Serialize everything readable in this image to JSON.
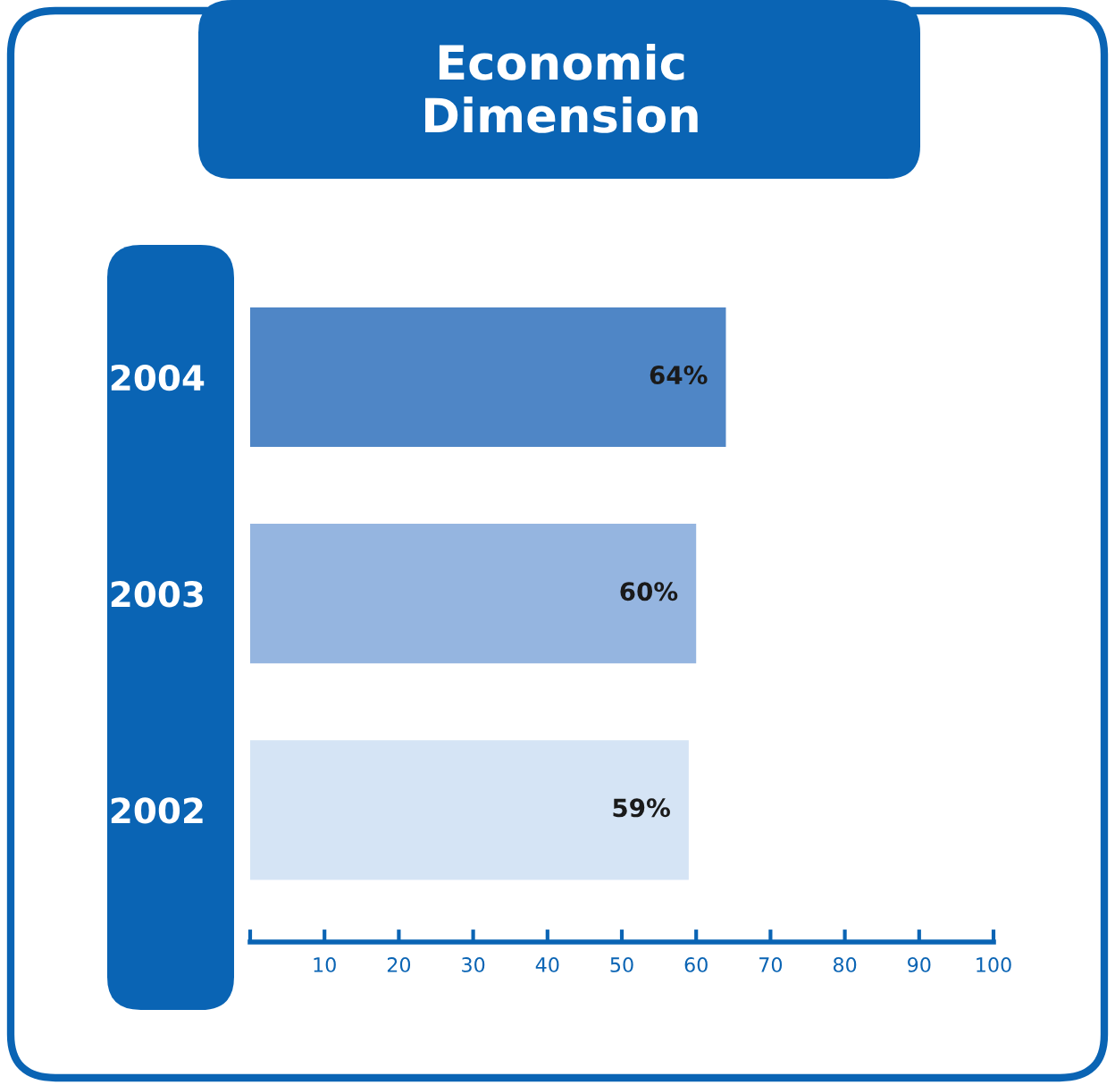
{
  "chart_data": {
    "type": "bar",
    "orientation": "horizontal",
    "title": "Economic\nDimension",
    "categories": [
      "2004",
      "2003",
      "2002"
    ],
    "values": [
      64,
      60,
      59
    ],
    "colors": [
      "#4f86c6",
      "#95b5e0",
      "#d5e4f5"
    ],
    "value_labels": [
      "64%",
      "60%",
      "59%"
    ],
    "xlim": [
      0,
      100
    ],
    "xticks": [
      {
        "value": 0,
        "label": null
      },
      10,
      20,
      30,
      40,
      50,
      60,
      70,
      80,
      90,
      100
    ],
    "grid": false,
    "legend": false
  }
}
